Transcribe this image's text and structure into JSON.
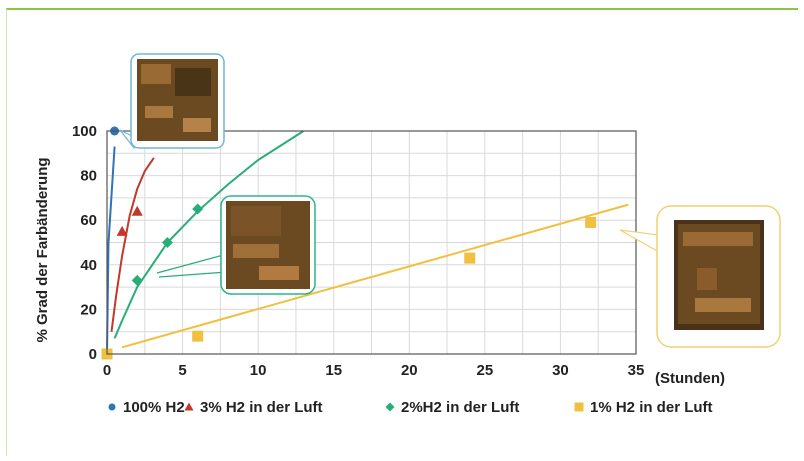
{
  "chart_data": {
    "type": "scatter",
    "xlabel": "(Stunden)",
    "ylabel": "% Grad der Farbänderung",
    "xlim": [
      0,
      35
    ],
    "ylim": [
      0,
      100
    ],
    "x_ticks": [
      0,
      5,
      10,
      15,
      20,
      25,
      30,
      35
    ],
    "y_ticks": [
      0,
      20,
      40,
      60,
      80,
      100
    ],
    "grid": true,
    "legend_position": "bottom",
    "series": [
      {
        "name": "100% H2",
        "color": "#2e75b6",
        "marker": "circle",
        "points": [
          [
            0,
            0
          ],
          [
            0.5,
            100
          ]
        ],
        "fit": [
          [
            0,
            0
          ],
          [
            0.1,
            50
          ],
          [
            0.5,
            93
          ]
        ]
      },
      {
        "name": "3% H2 in der Luft",
        "color": "#c0392b",
        "marker": "triangle",
        "points": [
          [
            0,
            0
          ],
          [
            1,
            55
          ],
          [
            2,
            64
          ]
        ],
        "fit": [
          [
            0.3,
            10
          ],
          [
            0.6,
            26
          ],
          [
            1,
            44
          ],
          [
            1.5,
            62
          ],
          [
            2,
            74
          ],
          [
            2.5,
            82
          ],
          [
            3.1,
            88
          ]
        ]
      },
      {
        "name": "2%H2 in der Luft",
        "color": "#27ae78",
        "marker": "diamond",
        "points": [
          [
            0,
            0
          ],
          [
            2,
            33
          ],
          [
            4,
            50
          ],
          [
            6,
            65
          ]
        ],
        "fit": [
          [
            0.5,
            7
          ],
          [
            1,
            15
          ],
          [
            2,
            30
          ],
          [
            4,
            50
          ],
          [
            6,
            64
          ],
          [
            8,
            76
          ],
          [
            10,
            87
          ],
          [
            13,
            100
          ]
        ]
      },
      {
        "name": "1% H2 in der Luft",
        "color": "#f0c040",
        "marker": "square",
        "points": [
          [
            0,
            0
          ],
          [
            6,
            8
          ],
          [
            24,
            43
          ],
          [
            32,
            59
          ]
        ],
        "fit": [
          [
            1,
            3
          ],
          [
            34.5,
            67
          ]
        ]
      }
    ]
  },
  "insets": {
    "photo_icon": "film-sample-photo"
  }
}
